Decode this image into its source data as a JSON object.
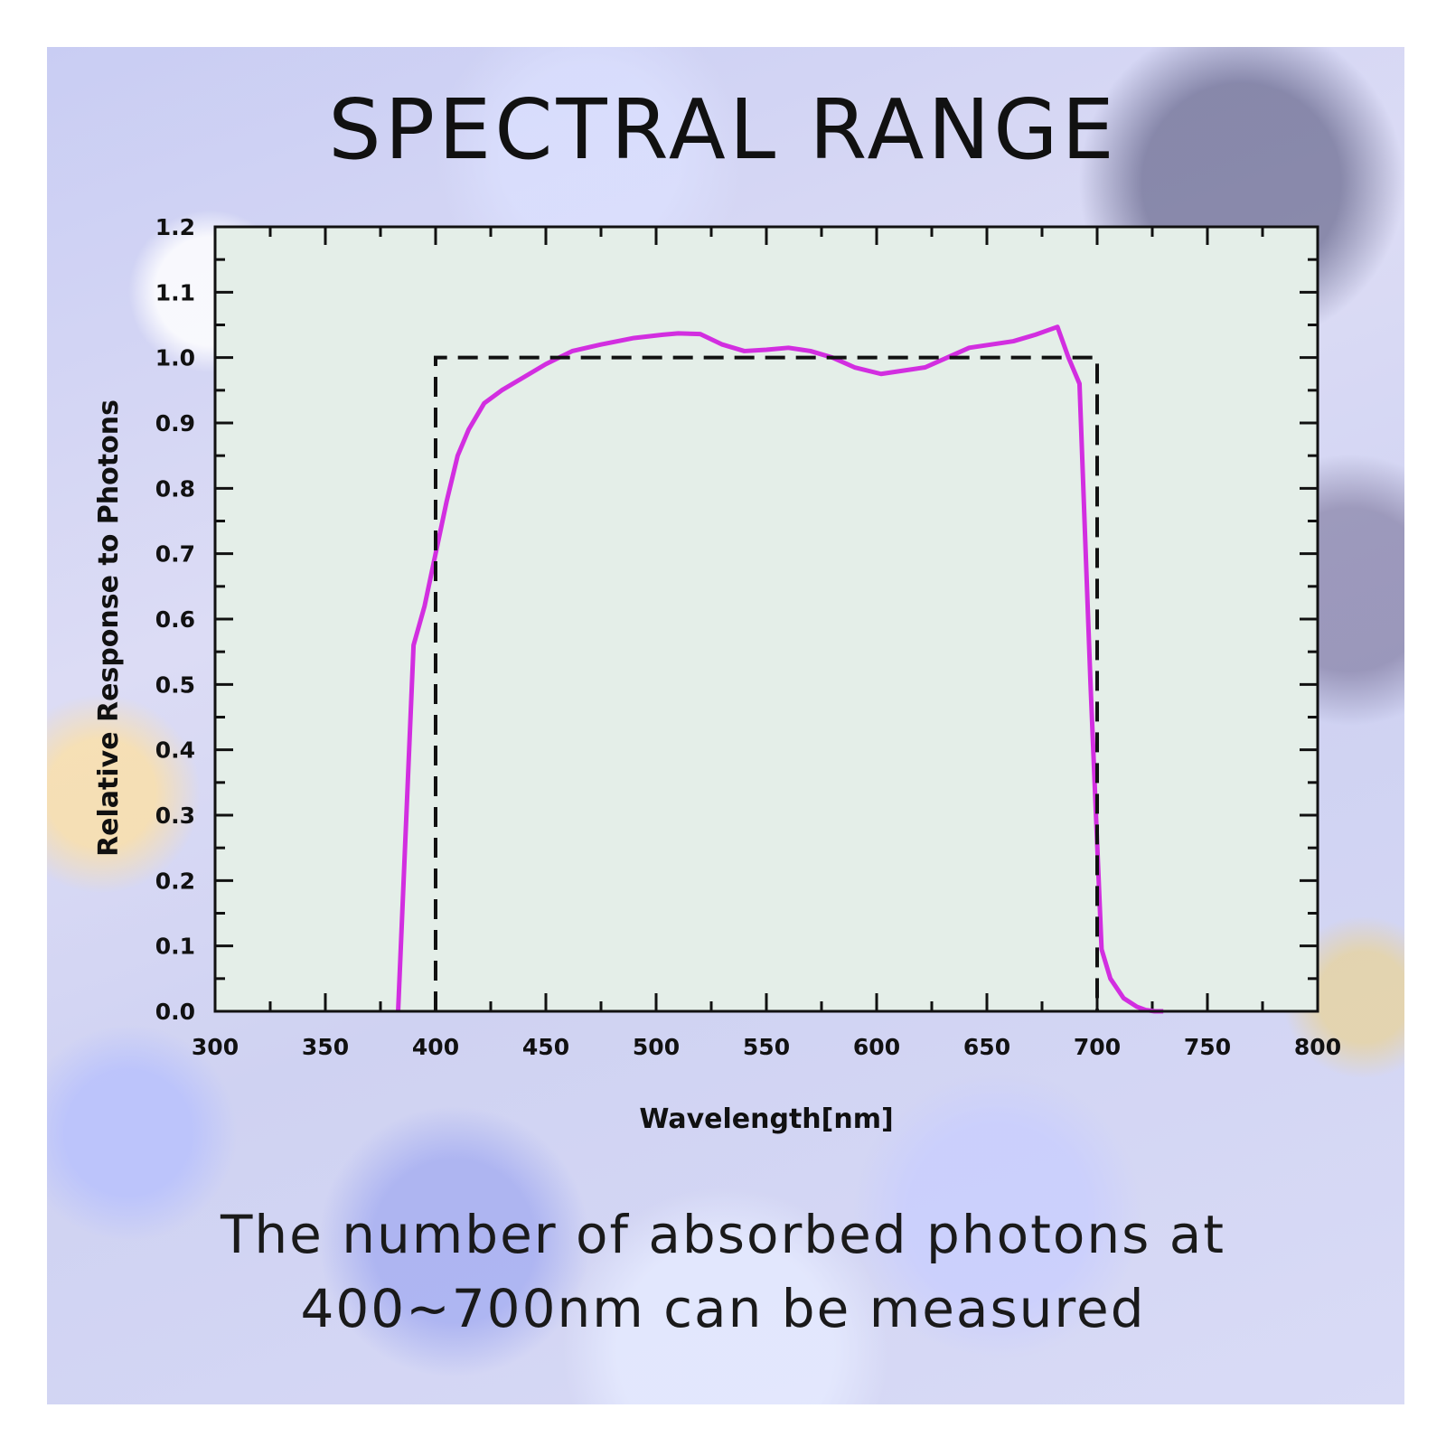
{
  "title": "SPECTRAL RANGE",
  "caption": {
    "line1": "The number of absorbed photons at",
    "line2": "400~700nm can be measured"
  },
  "colors": {
    "plot_background": "#e4eee8",
    "curve": "#d22ee0",
    "reference": "#111111"
  },
  "chart_data": {
    "type": "line",
    "title": "SPECTRAL RANGE",
    "xlabel": "Wavelength[nm]",
    "ylabel": "Relative Response to Photons",
    "xlim": [
      300,
      800
    ],
    "ylim": [
      0,
      1.2
    ],
    "x_ticks": [
      300,
      350,
      400,
      450,
      500,
      550,
      600,
      650,
      700,
      750,
      800
    ],
    "y_ticks": [
      0.0,
      0.1,
      0.2,
      0.3,
      0.4,
      0.5,
      0.6,
      0.7,
      0.8,
      0.9,
      1.0,
      1.1,
      1.2
    ],
    "x_tick_labels": [
      "300",
      "350",
      "400",
      "450",
      "500",
      "550",
      "600",
      "650",
      "700",
      "750",
      "800"
    ],
    "y_tick_labels": [
      "0.0",
      "0.1",
      "0.2",
      "0.3",
      "0.4",
      "0.5",
      "0.6",
      "0.7",
      "0.8",
      "0.9",
      "1.0",
      "1.1",
      "1.2"
    ],
    "grid": false,
    "series": [
      {
        "style": "solid",
        "x": [
          383,
          390,
          395,
          400,
          405,
          410,
          415,
          422,
          430,
          440,
          450,
          462,
          475,
          490,
          503,
          510,
          520,
          530,
          540,
          550,
          560,
          570,
          580,
          590,
          602,
          612,
          622,
          632,
          642,
          652,
          662,
          672,
          682,
          687,
          692,
          697,
          702,
          706,
          712,
          718,
          722,
          726,
          730
        ],
        "y": [
          0.0,
          0.56,
          0.62,
          0.7,
          0.78,
          0.85,
          0.89,
          0.93,
          0.95,
          0.97,
          0.99,
          1.01,
          1.02,
          1.03,
          1.035,
          1.037,
          1.036,
          1.02,
          1.01,
          1.012,
          1.015,
          1.01,
          1.0,
          0.985,
          0.975,
          0.98,
          0.985,
          1.0,
          1.015,
          1.02,
          1.025,
          1.035,
          1.047,
          1.0,
          0.96,
          0.5,
          0.095,
          0.05,
          0.02,
          0.007,
          0.002,
          0.0,
          0.0
        ]
      },
      {
        "style": "dashed",
        "x": [
          400,
          400,
          700,
          700
        ],
        "y": [
          0.0,
          1.0,
          1.0,
          0.0
        ]
      }
    ]
  }
}
